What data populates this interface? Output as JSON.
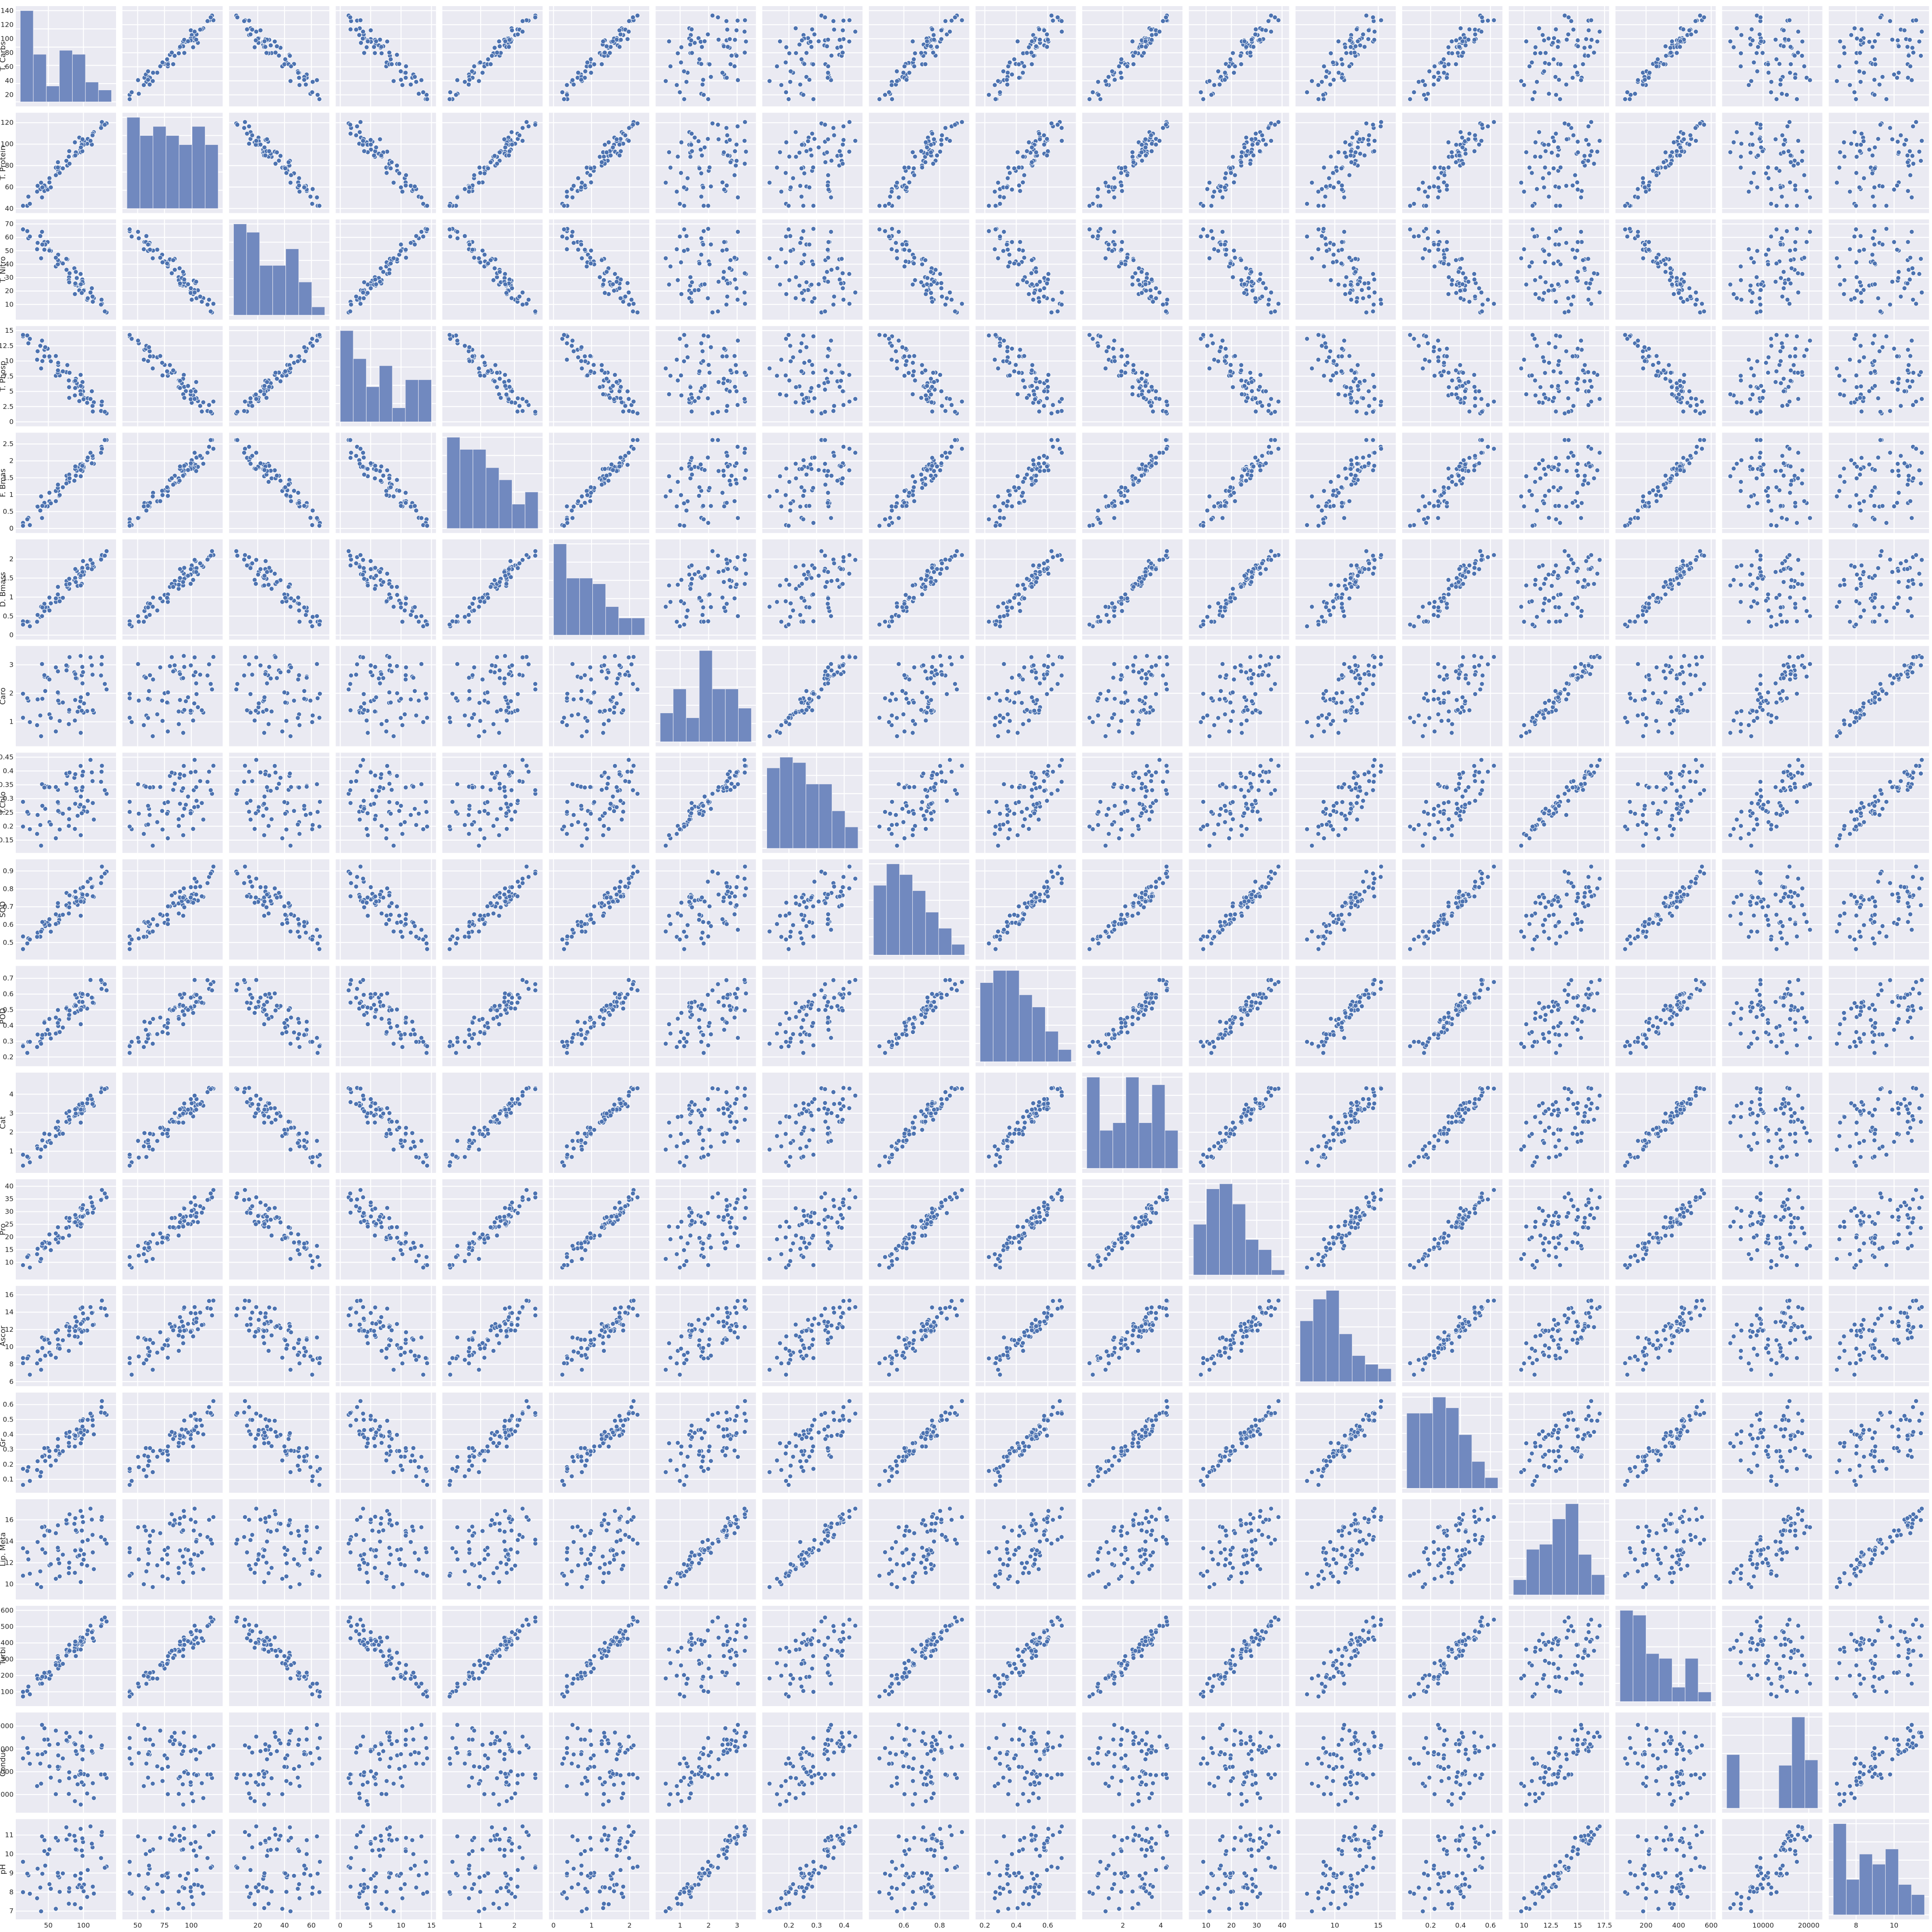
{
  "chart_data": {
    "type": "scatter",
    "kind": "pairplot",
    "diagonal": "histogram",
    "grid": true,
    "legend": "none",
    "colors": {
      "marker": "#4c72b0",
      "hist": "#7189bf",
      "panel_background": "#eaeaf2",
      "grid": "#ffffff"
    },
    "variables": [
      {
        "name": "T. Carbs",
        "range": [
          10,
          140
        ],
        "ticks": [
          50,
          100
        ],
        "yticks": [
          20,
          40,
          60,
          80,
          100,
          120,
          140
        ],
        "hist": [
          23,
          12,
          4,
          13,
          12,
          5,
          3
        ]
      },
      {
        "name": "T. Protein",
        "range": [
          40,
          125
        ],
        "ticks": [
          50,
          75,
          100
        ],
        "yticks": [
          40,
          60,
          80,
          100,
          120
        ],
        "hist": [
          10,
          8,
          9,
          8,
          7,
          9,
          7
        ]
      },
      {
        "name": "T. Nitro",
        "range": [
          2,
          70
        ],
        "ticks": [
          20,
          40,
          60
        ],
        "yticks": [
          10,
          20,
          30,
          40,
          50,
          60,
          70
        ],
        "hist": [
          11,
          10,
          6,
          6,
          8,
          4,
          1
        ]
      },
      {
        "name": "T. Phosp",
        "range": [
          0,
          15
        ],
        "ticks": [
          0,
          5,
          10,
          15
        ],
        "yticks": [
          0.0,
          2.5,
          5.0,
          7.5,
          10.0,
          12.5,
          15.0
        ],
        "hist": [
          13,
          9,
          5,
          8,
          2,
          6,
          6
        ]
      },
      {
        "name": "F. Bmas",
        "range": [
          0,
          2.7
        ],
        "ticks": [
          1,
          2
        ],
        "yticks": [
          0.0,
          0.5,
          1.0,
          1.5,
          2.0,
          2.5
        ],
        "hist": [
          15,
          13,
          13,
          10,
          8,
          4,
          6
        ]
      },
      {
        "name": "D. Bmass",
        "range": [
          0,
          2.4
        ],
        "ticks": [
          0,
          1,
          2
        ],
        "yticks": [
          0.0,
          0.5,
          1.0,
          1.5,
          2.0
        ],
        "hist": [
          16,
          10,
          10,
          9,
          5,
          3,
          3
        ]
      },
      {
        "name": "Caro",
        "range": [
          0.3,
          3.5
        ],
        "ticks": [
          1,
          2,
          3
        ],
        "yticks": [
          1,
          2,
          3
        ],
        "hist": [
          6,
          11,
          5,
          19,
          11,
          11,
          7
        ]
      },
      {
        "name": "T.Chlo",
        "range": [
          0.12,
          0.45
        ],
        "ticks": [
          0.2,
          0.3,
          0.4
        ],
        "yticks": [
          0.15,
          0.2,
          0.25,
          0.3,
          0.35,
          0.4,
          0.45
        ],
        "hist": [
          15,
          17,
          16,
          12,
          12,
          7,
          4
        ]
      },
      {
        "name": "SOD",
        "range": [
          0.43,
          0.94
        ],
        "ticks": [
          0.6,
          0.8
        ],
        "yticks": [
          0.5,
          0.6,
          0.7,
          0.8,
          0.9
        ],
        "hist": [
          13,
          17,
          15,
          12,
          8,
          5,
          2
        ]
      },
      {
        "name": "POD",
        "range": [
          0.17,
          0.75
        ],
        "ticks": [
          0.2,
          0.4,
          0.6
        ],
        "yticks": [
          0.2,
          0.3,
          0.4,
          0.5,
          0.6,
          0.7
        ],
        "hist": [
          13,
          15,
          15,
          11,
          9,
          5,
          2
        ]
      },
      {
        "name": "Cat",
        "range": [
          0.1,
          4.9
        ],
        "ticks": [
          2,
          4
        ],
        "yticks": [
          1,
          2,
          3,
          4
        ],
        "hist": [
          12,
          5,
          6,
          12,
          6,
          11,
          5
        ]
      },
      {
        "name": "Pro",
        "range": [
          5,
          41
        ],
        "ticks": [
          10,
          20,
          30,
          40
        ],
        "yticks": [
          10,
          15,
          20,
          25,
          30,
          35,
          40
        ],
        "hist": [
          10,
          17,
          18,
          14,
          7,
          5,
          1
        ]
      },
      {
        "name": "Ascor",
        "range": [
          6,
          16.5
        ],
        "ticks": [
          10,
          15
        ],
        "yticks": [
          6,
          8,
          10,
          12,
          14,
          16
        ],
        "hist": [
          14,
          19,
          21,
          11,
          6,
          4,
          3
        ]
      },
      {
        "name": "Gr",
        "range": [
          0.04,
          0.65
        ],
        "ticks": [
          0.2,
          0.4,
          0.6
        ],
        "yticks": [
          0.1,
          0.2,
          0.3,
          0.4,
          0.5,
          0.6
        ],
        "hist": [
          14,
          14,
          17,
          15,
          10,
          5,
          2
        ]
      },
      {
        "name": "Lip. Meta",
        "range": [
          9,
          17.5
        ],
        "ticks": [
          10.0,
          12.5,
          15.0,
          17.5
        ],
        "yticks": [
          10,
          12,
          14,
          16
        ],
        "hist": [
          3,
          9,
          10,
          15,
          18,
          8,
          4
        ]
      },
      {
        "name": "Turbi",
        "range": [
          40,
          600
        ],
        "ticks": [
          200,
          400,
          600
        ],
        "yticks": [
          100,
          200,
          300,
          400,
          500,
          600
        ],
        "hist": [
          19,
          18,
          10,
          9,
          3,
          9,
          2
        ]
      },
      {
        "name": "Conduc",
        "range": [
          2000,
          22000
        ],
        "ticks": [
          10000,
          20000
        ],
        "yticks": [
          5000,
          10000,
          15000,
          20000
        ],
        "hist": [
          10,
          0,
          0,
          0,
          8,
          17,
          9
        ]
      },
      {
        "name": "pH",
        "range": [
          6.8,
          11.6
        ],
        "ticks": [
          8,
          10
        ],
        "yticks": [
          7,
          8,
          9,
          10,
          11
        ],
        "hist": [
          18,
          7,
          12,
          10,
          13,
          6,
          4
        ]
      }
    ]
  }
}
